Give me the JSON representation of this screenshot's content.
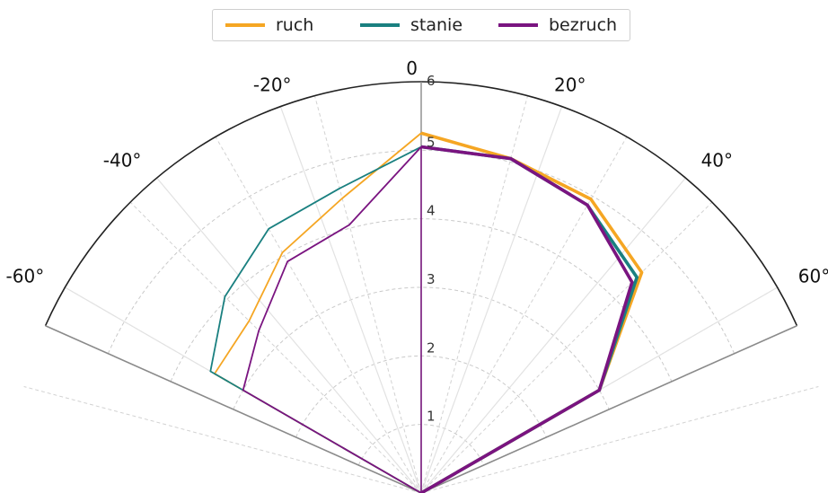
{
  "chart_data": {
    "type": "polar-line",
    "theta_unit": "degrees",
    "theta_ticks": [
      -60,
      -40,
      -20,
      0,
      20,
      40,
      60
    ],
    "theta_tick_labels": [
      "-60°",
      "-40°",
      "-20°",
      "0",
      "20°",
      "40°",
      "60°"
    ],
    "r_ticks": [
      1,
      2,
      3,
      4,
      5,
      6
    ],
    "r_tick_labels": [
      "1",
      "2",
      "3",
      "4",
      "5",
      "6"
    ],
    "rlim": [
      0,
      6
    ],
    "theta_range_visible": [
      -66,
      66
    ],
    "grid": true,
    "legend": {
      "placement": "top-center"
    },
    "series": [
      {
        "name": "ruch",
        "color": "#F5A623",
        "angles": [
          0,
          15,
          30,
          45,
          60,
          75,
          -75,
          -60,
          -45,
          -30,
          -15,
          0
        ],
        "values": [
          5.25,
          5.05,
          4.95,
          4.55,
          3.0,
          0,
          0,
          3.48,
          3.55,
          4.05,
          4.45,
          5.25
        ]
      },
      {
        "name": "stanie",
        "color": "#1A8080",
        "angles": [
          0,
          15,
          30,
          45,
          60,
          75,
          -75,
          -60,
          -45,
          -30,
          -15,
          0
        ],
        "values": [
          5.05,
          5.05,
          4.85,
          4.45,
          3.0,
          0,
          0,
          3.55,
          4.05,
          4.45,
          4.6,
          5.05
        ]
      },
      {
        "name": "bezruch",
        "color": "#7A1480",
        "angles": [
          0,
          15,
          30,
          45,
          60,
          75,
          -75,
          -60,
          -45,
          -30,
          -15,
          0
        ],
        "values": [
          5.05,
          5.05,
          4.85,
          4.35,
          3.0,
          0,
          0,
          3.0,
          3.35,
          3.9,
          4.05,
          5.05
        ]
      }
    ]
  }
}
